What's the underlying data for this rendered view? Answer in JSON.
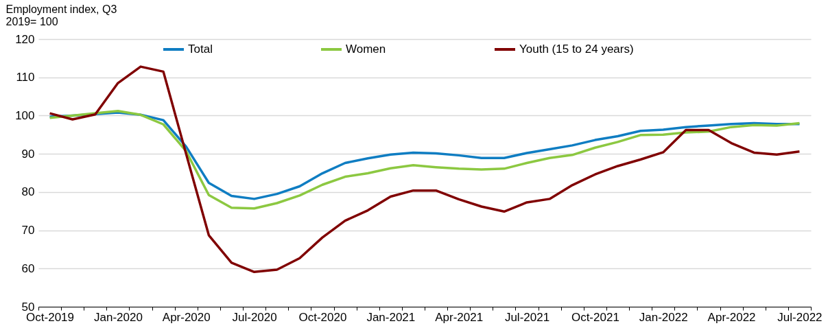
{
  "chart_data": {
    "type": "line",
    "ylabel": "Employment index, Q3\n2019= 100",
    "categories": [
      "Oct-2019",
      null,
      null,
      "Jan-2020",
      null,
      null,
      "Apr-2020",
      null,
      null,
      "Jul-2020",
      null,
      null,
      "Oct-2020",
      null,
      null,
      "Jan-2021",
      null,
      null,
      "Apr-2021",
      null,
      null,
      "Jul-2021",
      null,
      null,
      "Oct-2021",
      null,
      null,
      "Jan-2022",
      null,
      null,
      "Apr-2022",
      null,
      null,
      "Jul-2022"
    ],
    "series": [
      {
        "name": "Total",
        "color": "#0f7dc2",
        "values": [
          99.7,
          100.0,
          100.4,
          100.8,
          100.2,
          98.8,
          91.9,
          82.4,
          79.0,
          78.2,
          79.5,
          81.5,
          84.9,
          87.6,
          88.8,
          89.8,
          90.3,
          90.1,
          89.6,
          88.9,
          88.9,
          90.2,
          91.2,
          92.2,
          93.6,
          94.6,
          96.0,
          96.3,
          97.0,
          97.4,
          97.8,
          98.0,
          97.8,
          97.8
        ]
      },
      {
        "name": "Women",
        "color": "#8cc841",
        "values": [
          99.4,
          100.0,
          100.6,
          101.2,
          100.2,
          97.7,
          90.7,
          79.2,
          75.9,
          75.7,
          77.1,
          79.1,
          81.9,
          84.0,
          84.9,
          86.2,
          87.0,
          86.5,
          86.1,
          85.9,
          86.1,
          87.6,
          88.9,
          89.7,
          91.6,
          93.1,
          94.9,
          95.0,
          95.6,
          95.8,
          97.0,
          97.5,
          97.4,
          98.0
        ]
      },
      {
        "name": "Youth (15 to 24 years)",
        "color": "#800000",
        "values": [
          100.6,
          99.0,
          100.3,
          108.5,
          112.8,
          111.5,
          90.0,
          68.7,
          61.5,
          59.1,
          59.7,
          62.7,
          68.1,
          72.5,
          75.2,
          78.8,
          80.4,
          80.4,
          78.1,
          76.2,
          74.9,
          77.3,
          78.2,
          81.8,
          84.6,
          86.8,
          88.5,
          90.4,
          96.2,
          96.2,
          92.8,
          90.3,
          89.8,
          90.6
        ]
      }
    ],
    "ylim": [
      50,
      120
    ],
    "yticks": [
      50,
      60,
      70,
      80,
      90,
      100,
      110,
      120
    ],
    "grid": "y",
    "legend": "top"
  }
}
